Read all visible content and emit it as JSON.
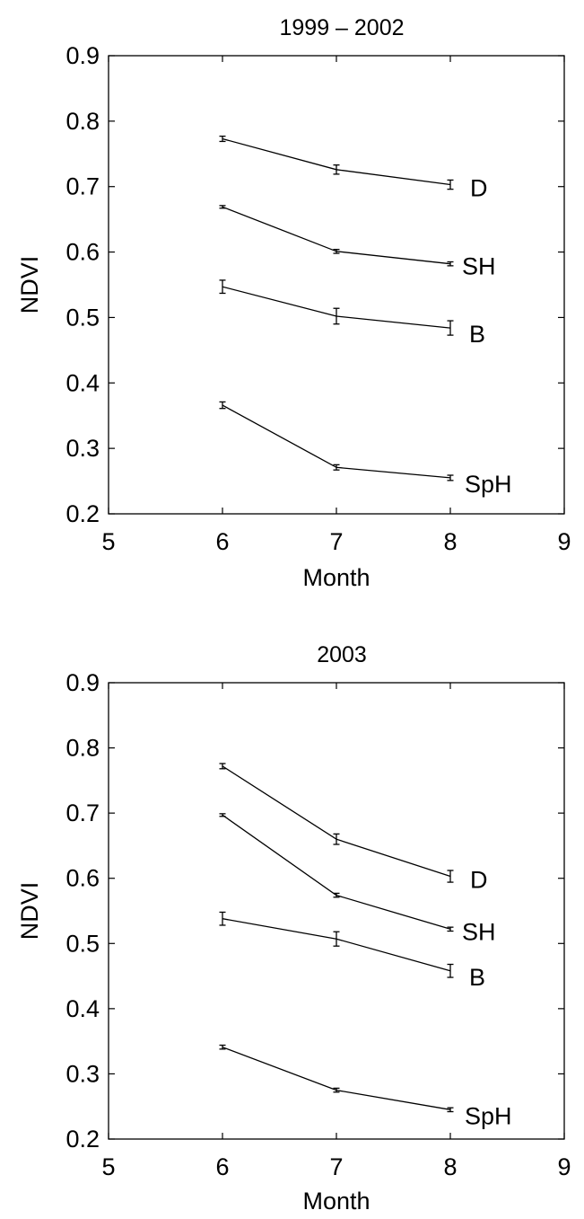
{
  "chart_data": [
    {
      "type": "line",
      "title": "1999 – 2002",
      "xlabel": "Month",
      "ylabel": "NDVI",
      "xlim": [
        5,
        9
      ],
      "ylim": [
        0.2,
        0.9
      ],
      "xticks": [
        "5",
        "6",
        "7",
        "8",
        "9"
      ],
      "yticks": [
        "0.2",
        "0.3",
        "0.4",
        "0.5",
        "0.6",
        "0.7",
        "0.8",
        "0.9"
      ],
      "grid": false,
      "x": [
        6,
        7,
        8
      ],
      "series": [
        {
          "name": "D",
          "values": [
            0.773,
            0.726,
            0.703
          ],
          "errors": [
            0.004,
            0.007,
            0.007
          ]
        },
        {
          "name": "SH",
          "values": [
            0.669,
            0.601,
            0.582
          ],
          "errors": [
            0.002,
            0.003,
            0.003
          ]
        },
        {
          "name": "B",
          "values": [
            0.547,
            0.502,
            0.484
          ],
          "errors": [
            0.01,
            0.012,
            0.011
          ]
        },
        {
          "name": "SpH",
          "values": [
            0.366,
            0.271,
            0.255
          ],
          "errors": [
            0.005,
            0.004,
            0.004
          ]
        }
      ]
    },
    {
      "type": "line",
      "title": "2003",
      "xlabel": "Month",
      "ylabel": "NDVI",
      "xlim": [
        5,
        9
      ],
      "ylim": [
        0.2,
        0.9
      ],
      "xticks": [
        "5",
        "6",
        "7",
        "8",
        "9"
      ],
      "yticks": [
        "0.2",
        "0.3",
        "0.4",
        "0.5",
        "0.6",
        "0.7",
        "0.8",
        "0.9"
      ],
      "grid": false,
      "x": [
        6,
        7,
        8
      ],
      "series": [
        {
          "name": "D",
          "values": [
            0.772,
            0.66,
            0.603
          ],
          "errors": [
            0.004,
            0.008,
            0.009
          ]
        },
        {
          "name": "SH",
          "values": [
            0.697,
            0.574,
            0.522
          ],
          "errors": [
            0.002,
            0.003,
            0.003
          ]
        },
        {
          "name": "B",
          "values": [
            0.538,
            0.507,
            0.458
          ],
          "errors": [
            0.01,
            0.011,
            0.01
          ]
        },
        {
          "name": "SpH",
          "values": [
            0.341,
            0.275,
            0.245
          ],
          "errors": [
            0.003,
            0.003,
            0.003
          ]
        }
      ]
    }
  ]
}
